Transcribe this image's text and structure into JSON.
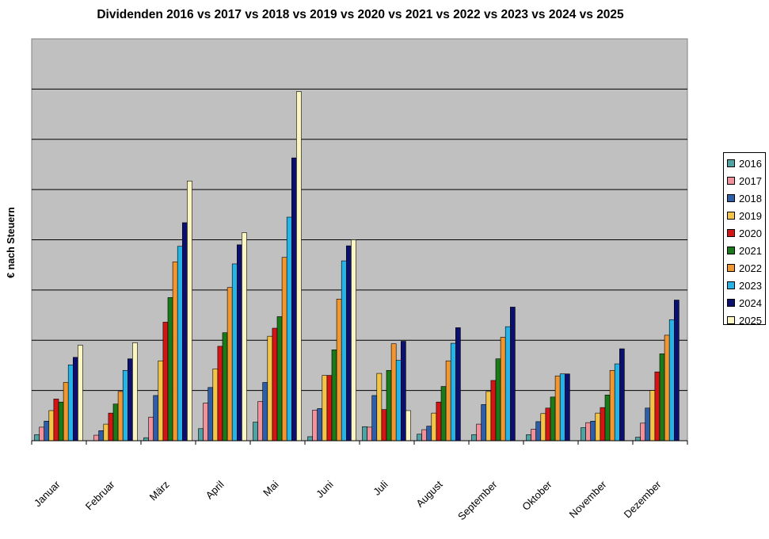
{
  "chart_data": {
    "type": "bar",
    "title": "Dividenden 2016 vs 2017 vs 2018 vs 2019 vs 2020 vs 2021 vs 2022 vs 2023 vs 2024 vs 2025",
    "xlabel": "",
    "ylabel": "€ nach Steuern",
    "ylim": [
      0,
      8
    ],
    "grid": true,
    "legend_position": "right",
    "categories": [
      "Januar",
      "Februar",
      "März",
      "April",
      "Mai",
      "Juni",
      "Juli",
      "August",
      "September",
      "Oktober",
      "November",
      "Dezember"
    ],
    "series": [
      {
        "name": "2016",
        "color": "#4fa3a3",
        "values": [
          0.12,
          0,
          0.06,
          0.24,
          0.37,
          0.08,
          0.28,
          0.13,
          0.12,
          0.12,
          0.26,
          0.07
        ]
      },
      {
        "name": "2017",
        "color": "#f0919c",
        "values": [
          0.27,
          0.11,
          0.47,
          0.75,
          0.78,
          0.61,
          0.27,
          0.22,
          0.33,
          0.23,
          0.36,
          0.35
        ]
      },
      {
        "name": "2018",
        "color": "#2f5ea8",
        "values": [
          0.39,
          0.2,
          0.9,
          1.06,
          1.16,
          0.64,
          0.9,
          0.29,
          0.72,
          0.38,
          0.39,
          0.65
        ]
      },
      {
        "name": "2019",
        "color": "#f3c445",
        "values": [
          0.6,
          0.33,
          1.59,
          1.43,
          2.08,
          1.3,
          1.34,
          0.55,
          0.98,
          0.54,
          0.55,
          1.0
        ]
      },
      {
        "name": "2020",
        "color": "#d51515",
        "values": [
          0.83,
          0.55,
          2.36,
          1.88,
          2.24,
          1.3,
          0.62,
          0.77,
          1.2,
          0.65,
          0.66,
          1.37
        ]
      },
      {
        "name": "2021",
        "color": "#1a7a1a",
        "values": [
          0.77,
          0.73,
          2.85,
          2.15,
          2.47,
          1.81,
          1.4,
          1.08,
          1.63,
          0.87,
          0.91,
          1.73
        ]
      },
      {
        "name": "2022",
        "color": "#f29630",
        "values": [
          1.16,
          0.98,
          3.56,
          3.05,
          3.65,
          2.82,
          1.93,
          1.59,
          2.06,
          1.29,
          1.4,
          2.1
        ]
      },
      {
        "name": "2023",
        "color": "#26b4e6",
        "values": [
          1.51,
          1.4,
          3.87,
          3.52,
          4.45,
          3.58,
          1.6,
          1.94,
          2.27,
          1.33,
          1.53,
          2.41
        ]
      },
      {
        "name": "2024",
        "color": "#0b0f6e",
        "values": [
          1.66,
          1.63,
          4.34,
          3.9,
          5.63,
          3.88,
          1.98,
          2.25,
          2.66,
          1.33,
          1.83,
          2.8
        ]
      },
      {
        "name": "2025",
        "color": "#fbf5c2",
        "values": [
          1.9,
          1.95,
          5.17,
          4.14,
          6.95,
          4.0,
          0.6,
          null,
          null,
          null,
          null,
          null
        ]
      }
    ]
  }
}
